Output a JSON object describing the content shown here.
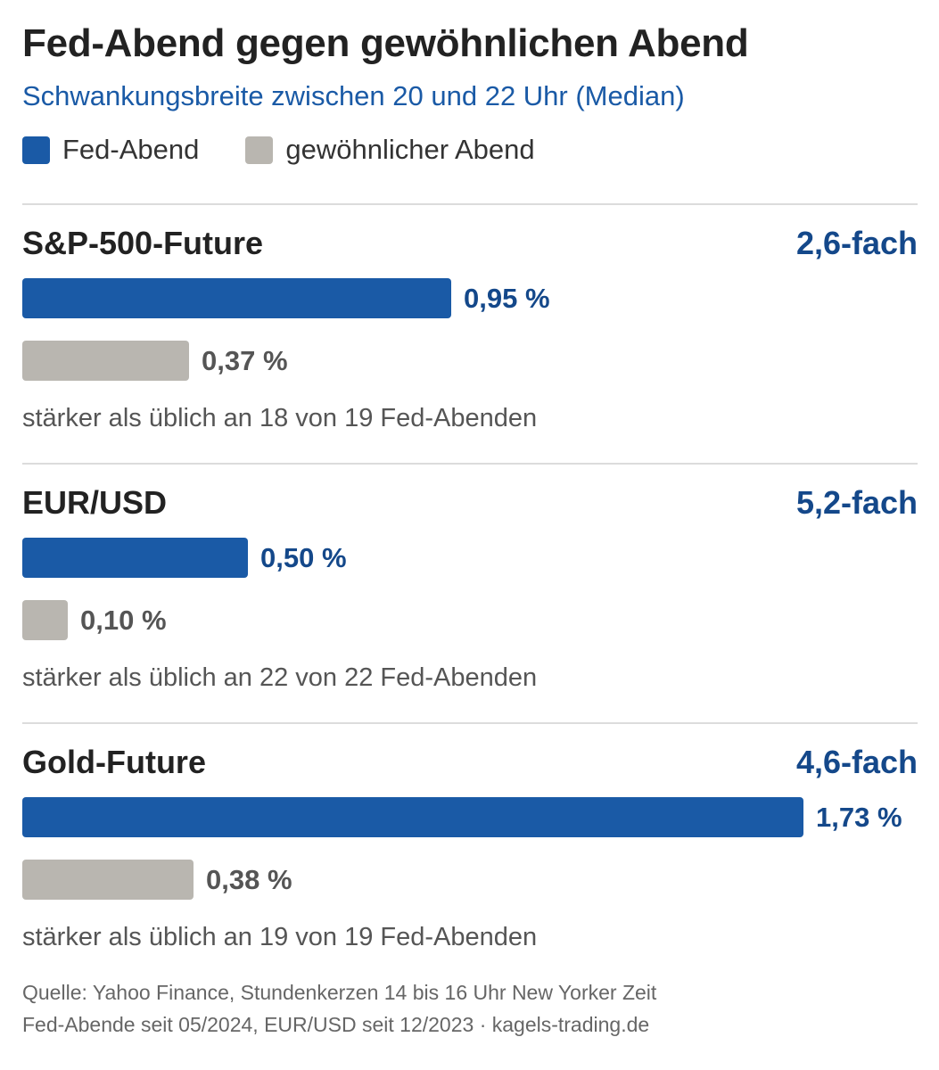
{
  "header": {
    "title": "Fed-Abend gegen gewöhnlichen Abend",
    "subtitle": "Schwankungsbreite zwischen 20 und 22 Uhr (Median)"
  },
  "legend": [
    {
      "label": "Fed-Abend",
      "color": "#1a5aa6"
    },
    {
      "label": "gewöhnlicher Abend",
      "color": "#b9b6b0"
    }
  ],
  "colors": {
    "fed": "#1a5aa6",
    "normal": "#b9b6b0",
    "fed_label": "#14488a",
    "normal_label": "#555555"
  },
  "chart_data": [
    {
      "type": "bar",
      "title": "S&P-500-Future",
      "factor": "2,6-fach",
      "series": [
        {
          "name": "Fed-Abend",
          "value": 0.95,
          "label": "0,95 %"
        },
        {
          "name": "gewöhnlicher Abend",
          "value": 0.37,
          "label": "0,37 %"
        }
      ],
      "note": "stärker als üblich an 18 von 19 Fed-Abenden"
    },
    {
      "type": "bar",
      "title": "EUR/USD",
      "factor": "5,2-fach",
      "series": [
        {
          "name": "Fed-Abend",
          "value": 0.5,
          "label": "0,50 %"
        },
        {
          "name": "gewöhnlicher Abend",
          "value": 0.1,
          "label": "0,10 %"
        }
      ],
      "note": "stärker als üblich an 22 von 22 Fed-Abenden"
    },
    {
      "type": "bar",
      "title": "Gold-Future",
      "factor": "4,6-fach",
      "series": [
        {
          "name": "Fed-Abend",
          "value": 1.73,
          "label": "1,73 %"
        },
        {
          "name": "gewöhnlicher Abend",
          "value": 0.38,
          "label": "0,38 %"
        }
      ],
      "note": "stärker als üblich an 19 von 19 Fed-Abenden"
    }
  ],
  "source": {
    "line1": "Quelle: Yahoo Finance, Stundenkerzen 14 bis 16 Uhr New Yorker Zeit",
    "line2": "Fed-Abende seit 05/2024, EUR/USD seit 12/2023 · kagels-trading.de"
  }
}
